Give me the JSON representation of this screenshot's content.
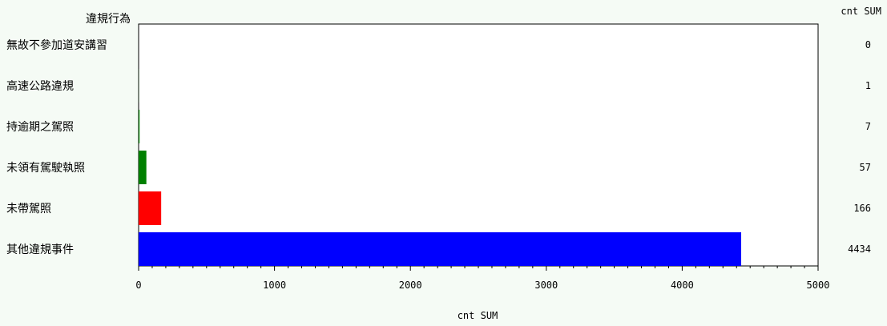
{
  "chart_data": {
    "type": "bar",
    "orientation": "horizontal",
    "category_header": "違規行為",
    "value_header": "cnt SUM",
    "xlabel": "cnt SUM",
    "categories": [
      "無故不參加道安講習",
      "高速公路違規",
      "持逾期之駕照",
      "未領有駕駛執照",
      "未帶駕照",
      "其他違規事件"
    ],
    "values": [
      0,
      1,
      7,
      57,
      166,
      4434
    ],
    "bar_colors": [
      "#008000",
      "#008000",
      "#008000",
      "#008000",
      "#ff0000",
      "#0000ff"
    ],
    "xlim": [
      0,
      5000
    ],
    "xticks": [
      0,
      1000,
      2000,
      3000,
      4000,
      5000
    ],
    "grid": false,
    "legend": "none"
  }
}
